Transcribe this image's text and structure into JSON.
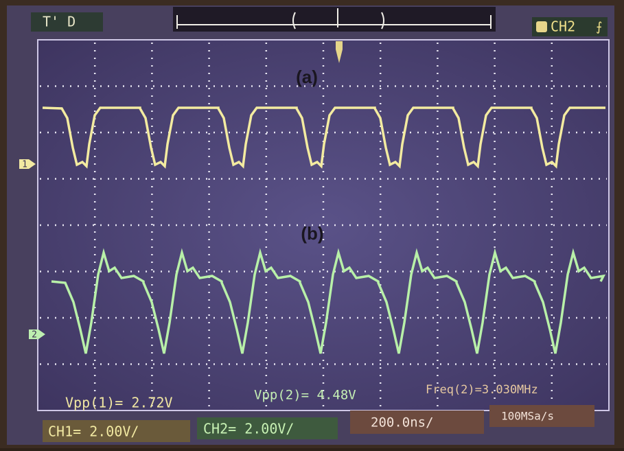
{
  "header": {
    "trigger_status": "T' D",
    "trigger_source": "CH2"
  },
  "traces": [
    {
      "label": "(a)",
      "marker": "1"
    },
    {
      "label": "(b)",
      "marker": "2"
    }
  ],
  "measurements": [
    "Vpp(1)= 2.72V",
    "Vpp(2)= 4.48V",
    "Freq(2)=3.030MHz"
  ],
  "footer": {
    "ch1": "CH1= 2.00V/",
    "ch2": "CH2= 2.00V/",
    "timebase": "200.0ns/",
    "sample_rate": "100MSa/s"
  }
}
